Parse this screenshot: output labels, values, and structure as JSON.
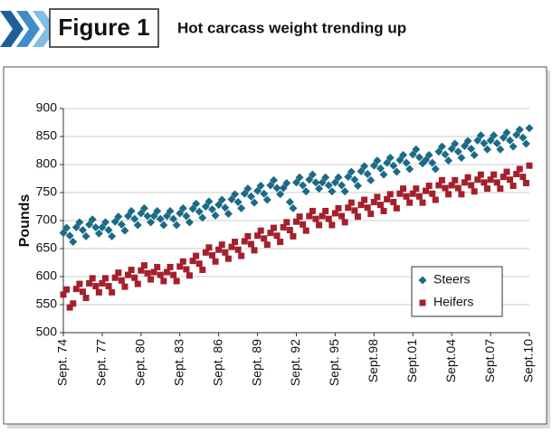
{
  "figure_label": "Figure 1",
  "chart_data": {
    "type": "scatter",
    "title": "Hot carcass weight trending up",
    "ylabel": "Pounds",
    "categories": [
      "Sept. 74",
      null,
      null,
      null,
      null,
      null,
      null,
      null,
      null,
      null,
      null,
      null,
      "Sept. 77",
      null,
      null,
      null,
      null,
      null,
      null,
      null,
      null,
      null,
      null,
      null,
      "Sept. 80",
      null,
      null,
      null,
      null,
      null,
      null,
      null,
      null,
      null,
      null,
      null,
      "Sept. 83",
      null,
      null,
      null,
      null,
      null,
      null,
      null,
      null,
      null,
      null,
      null,
      "Sept. 86",
      null,
      null,
      null,
      null,
      null,
      null,
      null,
      null,
      null,
      null,
      null,
      "Sept. 89",
      null,
      null,
      null,
      null,
      null,
      null,
      null,
      null,
      null,
      null,
      null,
      "Sept. 92",
      null,
      null,
      null,
      null,
      null,
      null,
      null,
      null,
      null,
      null,
      null,
      "Sept. 95",
      null,
      null,
      null,
      null,
      null,
      null,
      null,
      null,
      null,
      null,
      null,
      "Sept.98",
      null,
      null,
      null,
      null,
      null,
      null,
      null,
      null,
      null,
      null,
      null,
      "Sept.01",
      null,
      null,
      null,
      null,
      null,
      null,
      null,
      null,
      null,
      null,
      null,
      "Sept.04",
      null,
      null,
      null,
      null,
      null,
      null,
      null,
      null,
      null,
      null,
      null,
      "Sept.07",
      null,
      null,
      null,
      null,
      null,
      null,
      null,
      null,
      null,
      null,
      null,
      "Sept.10"
    ],
    "series": [
      {
        "name": "Steers",
        "color": "#1b6a87",
        "marker": "diamond",
        "values": [
          678,
          687,
          673,
          662,
          688,
          697,
          683,
          672,
          693,
          702,
          688,
          677,
          688,
          697,
          683,
          672,
          698,
          707,
          693,
          682,
          708,
          717,
          703,
          692,
          713,
          722,
          708,
          697,
          708,
          717,
          703,
          692,
          708,
          717,
          703,
          692,
          713,
          722,
          708,
          697,
          721,
          730,
          716,
          705,
          725,
          734,
          720,
          709,
          728,
          737,
          723,
          712,
          738,
          747,
          733,
          722,
          748,
          757,
          743,
          732,
          753,
          762,
          748,
          737,
          763,
          772,
          758,
          747,
          758,
          767,
          733,
          722,
          768,
          777,
          763,
          752,
          773,
          782,
          768,
          757,
          768,
          777,
          763,
          752,
          768,
          777,
          763,
          752,
          778,
          787,
          773,
          762,
          788,
          797,
          783,
          772,
          798,
          807,
          793,
          782,
          803,
          812,
          798,
          787,
          808,
          817,
          803,
          792,
          818,
          827,
          813,
          802,
          808,
          817,
          803,
          792,
          823,
          832,
          818,
          807,
          828,
          837,
          823,
          812,
          833,
          842,
          828,
          817,
          843,
          852,
          838,
          827,
          843,
          852,
          838,
          827,
          848,
          857,
          843,
          832,
          853,
          862,
          848,
          837,
          865
        ]
      },
      {
        "name": "Heifers",
        "color": "#a3202c",
        "marker": "square",
        "values": [
          568,
          577,
          545,
          552,
          578,
          587,
          573,
          562,
          588,
          597,
          583,
          572,
          588,
          597,
          583,
          572,
          598,
          607,
          593,
          582,
          603,
          612,
          598,
          587,
          611,
          620,
          606,
          595,
          608,
          617,
          603,
          592,
          608,
          617,
          603,
          592,
          618,
          627,
          613,
          602,
          628,
          637,
          623,
          612,
          643,
          652,
          638,
          627,
          648,
          657,
          643,
          632,
          653,
          662,
          648,
          637,
          663,
          672,
          658,
          647,
          673,
          682,
          668,
          657,
          678,
          687,
          673,
          662,
          688,
          697,
          683,
          672,
          698,
          707,
          693,
          682,
          708,
          717,
          703,
          692,
          708,
          717,
          703,
          692,
          713,
          722,
          708,
          697,
          723,
          732,
          718,
          707,
          728,
          737,
          723,
          712,
          733,
          742,
          728,
          717,
          738,
          747,
          733,
          722,
          748,
          757,
          743,
          732,
          748,
          757,
          743,
          732,
          753,
          762,
          748,
          737,
          763,
          772,
          758,
          747,
          763,
          772,
          758,
          747,
          768,
          777,
          763,
          752,
          773,
          782,
          768,
          757,
          773,
          782,
          768,
          757,
          778,
          787,
          773,
          762,
          783,
          792,
          778,
          767,
          798
        ]
      }
    ],
    "ylim": [
      500,
      900
    ],
    "yticks": [
      500,
      550,
      600,
      650,
      700,
      750,
      800,
      850,
      900
    ],
    "grid": true,
    "legend": "lower right"
  }
}
